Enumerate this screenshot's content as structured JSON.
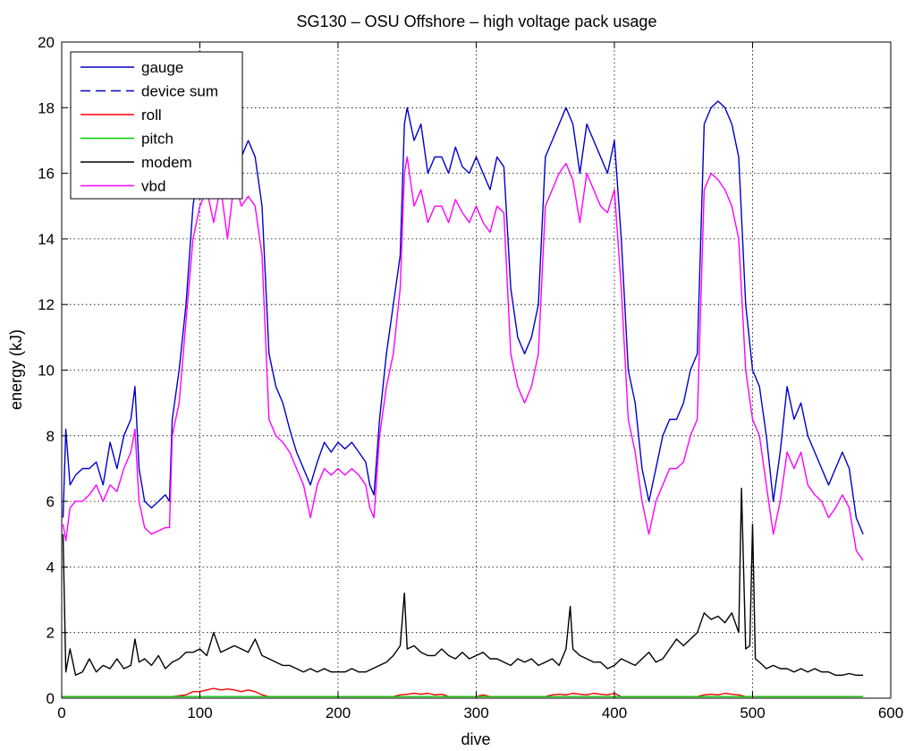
{
  "chart_data": {
    "type": "line",
    "title": "SG130 – OSU Offshore – high voltage pack usage",
    "xlabel": "dive",
    "ylabel": "energy (kJ)",
    "xlim": [
      0,
      600
    ],
    "ylim": [
      0,
      20
    ],
    "xticks": [
      0,
      100,
      200,
      300,
      400,
      500,
      600
    ],
    "yticks": [
      0,
      2,
      4,
      6,
      8,
      10,
      12,
      14,
      16,
      18,
      20
    ],
    "grid": true,
    "legend_position": "top-left",
    "series": [
      {
        "name": "gauge",
        "color": "#0000cc",
        "dash": "solid",
        "x": [
          1,
          3,
          6,
          10,
          15,
          20,
          25,
          30,
          35,
          40,
          45,
          50,
          53,
          56,
          60,
          65,
          70,
          75,
          78,
          80,
          85,
          90,
          95,
          100,
          105,
          110,
          115,
          120,
          125,
          130,
          135,
          140,
          145,
          150,
          155,
          160,
          165,
          170,
          175,
          180,
          185,
          190,
          195,
          200,
          205,
          210,
          215,
          220,
          223,
          226,
          230,
          235,
          240,
          245,
          248,
          250,
          255,
          260,
          265,
          270,
          275,
          280,
          285,
          290,
          295,
          300,
          305,
          310,
          315,
          320,
          325,
          330,
          335,
          340,
          345,
          350,
          355,
          360,
          365,
          370,
          375,
          380,
          385,
          390,
          395,
          400,
          405,
          410,
          415,
          420,
          425,
          430,
          435,
          440,
          445,
          450,
          455,
          460,
          465,
          470,
          475,
          480,
          485,
          490,
          495,
          500,
          505,
          510,
          515,
          520,
          525,
          530,
          535,
          540,
          545,
          550,
          555,
          560,
          565,
          570,
          575,
          580
        ],
        "y": [
          5.5,
          8.2,
          6.5,
          6.8,
          7.0,
          7.0,
          7.2,
          6.5,
          7.8,
          7.0,
          8.0,
          8.5,
          9.5,
          7.0,
          6.0,
          5.8,
          6.0,
          6.2,
          6.0,
          8.5,
          10.0,
          12.0,
          15.0,
          16.5,
          17.0,
          16.0,
          17.2,
          15.5,
          17.5,
          16.5,
          17.0,
          16.5,
          15.0,
          10.5,
          9.5,
          9.0,
          8.2,
          7.5,
          7.0,
          6.5,
          7.2,
          7.8,
          7.5,
          7.8,
          7.6,
          7.8,
          7.5,
          7.2,
          6.5,
          6.2,
          8.5,
          10.5,
          12.0,
          13.5,
          17.5,
          18.0,
          17.0,
          17.5,
          16.0,
          16.5,
          16.5,
          16.0,
          16.8,
          16.2,
          16.0,
          16.5,
          16.0,
          15.5,
          16.5,
          16.2,
          12.5,
          11.0,
          10.5,
          11.0,
          12.0,
          16.5,
          17.0,
          17.5,
          18.0,
          17.5,
          16.0,
          17.5,
          17.0,
          16.5,
          16.0,
          17.0,
          14.0,
          10.0,
          9.0,
          7.0,
          6.0,
          7.0,
          8.0,
          8.5,
          8.5,
          9.0,
          10.0,
          10.5,
          17.5,
          18.0,
          18.2,
          18.0,
          17.5,
          16.5,
          12.0,
          10.0,
          9.5,
          8.0,
          6.0,
          7.5,
          9.5,
          8.5,
          9.0,
          8.0,
          7.5,
          7.0,
          6.5,
          7.0,
          7.5,
          7.0,
          5.5,
          5.0
        ]
      },
      {
        "name": "device sum",
        "color": "#0000cc",
        "dash": "dashed",
        "x": [
          1,
          3,
          6,
          10,
          15,
          20,
          25,
          30,
          35,
          40,
          45,
          50,
          53,
          56,
          60,
          65,
          70,
          75,
          78,
          80,
          85,
          90,
          95,
          100,
          105,
          110,
          115,
          120,
          125,
          130,
          135,
          140,
          145,
          150,
          155,
          160,
          165,
          170,
          175,
          180,
          185,
          190,
          195,
          200,
          205,
          210,
          215,
          220,
          223,
          226,
          230,
          235,
          240,
          245,
          248,
          250,
          255,
          260,
          265,
          270,
          275,
          280,
          285,
          290,
          295,
          300,
          305,
          310,
          315,
          320,
          325,
          330,
          335,
          340,
          345,
          350,
          355,
          360,
          365,
          370,
          375,
          380,
          385,
          390,
          395,
          400,
          405,
          410,
          415,
          420,
          425,
          430,
          435,
          440,
          445,
          450,
          455,
          460,
          465,
          470,
          475,
          480,
          485,
          490,
          495,
          500,
          505,
          510,
          515,
          520,
          525,
          530,
          535,
          540,
          545,
          550,
          555,
          560,
          565,
          570,
          575,
          580
        ],
        "y": [
          5.5,
          8.2,
          6.5,
          6.8,
          7.0,
          7.0,
          7.2,
          6.5,
          7.8,
          7.0,
          8.0,
          8.5,
          9.5,
          7.0,
          6.0,
          5.8,
          6.0,
          6.2,
          6.0,
          8.5,
          10.0,
          12.0,
          15.0,
          16.5,
          17.0,
          16.0,
          17.2,
          15.5,
          17.5,
          16.5,
          17.0,
          16.5,
          15.0,
          10.5,
          9.5,
          9.0,
          8.2,
          7.5,
          7.0,
          6.5,
          7.2,
          7.8,
          7.5,
          7.8,
          7.6,
          7.8,
          7.5,
          7.2,
          6.5,
          6.2,
          8.5,
          10.5,
          12.0,
          13.5,
          17.5,
          18.0,
          17.0,
          17.5,
          16.0,
          16.5,
          16.5,
          16.0,
          16.8,
          16.2,
          16.0,
          16.5,
          16.0,
          15.5,
          16.5,
          16.2,
          12.5,
          11.0,
          10.5,
          11.0,
          12.0,
          16.5,
          17.0,
          17.5,
          18.0,
          17.5,
          16.0,
          17.5,
          17.0,
          16.5,
          16.0,
          17.0,
          14.0,
          10.0,
          9.0,
          7.0,
          6.0,
          7.0,
          8.0,
          8.5,
          8.5,
          9.0,
          10.0,
          10.5,
          17.5,
          18.0,
          18.2,
          18.0,
          17.5,
          16.5,
          12.0,
          10.0,
          9.5,
          8.0,
          6.0,
          7.5,
          9.5,
          8.5,
          9.0,
          8.0,
          7.5,
          7.0,
          6.5,
          7.0,
          7.5,
          7.0,
          5.5,
          5.0
        ]
      },
      {
        "name": "roll",
        "color": "#ff0000",
        "dash": "solid",
        "x": [
          0,
          80,
          90,
          95,
          100,
          105,
          110,
          115,
          120,
          125,
          130,
          135,
          140,
          145,
          150,
          240,
          245,
          250,
          255,
          260,
          265,
          270,
          275,
          280,
          290,
          300,
          305,
          310,
          350,
          355,
          360,
          365,
          370,
          375,
          380,
          385,
          390,
          395,
          400,
          405,
          460,
          465,
          470,
          475,
          480,
          485,
          490,
          495,
          500,
          580
        ],
        "y": [
          0.05,
          0.05,
          0.1,
          0.2,
          0.2,
          0.25,
          0.3,
          0.25,
          0.28,
          0.25,
          0.2,
          0.25,
          0.2,
          0.1,
          0.05,
          0.05,
          0.1,
          0.12,
          0.15,
          0.12,
          0.15,
          0.1,
          0.12,
          0.05,
          0.05,
          0.05,
          0.1,
          0.05,
          0.05,
          0.1,
          0.12,
          0.1,
          0.15,
          0.12,
          0.1,
          0.15,
          0.12,
          0.1,
          0.15,
          0.05,
          0.05,
          0.1,
          0.12,
          0.1,
          0.15,
          0.12,
          0.1,
          0.05,
          0.05,
          0.05
        ]
      },
      {
        "name": "pitch",
        "color": "#00cc00",
        "dash": "solid",
        "x": [
          0,
          100,
          200,
          300,
          400,
          500,
          580
        ],
        "y": [
          0.05,
          0.05,
          0.05,
          0.05,
          0.05,
          0.05,
          0.05
        ]
      },
      {
        "name": "modem",
        "color": "#000000",
        "dash": "solid",
        "x": [
          1,
          3,
          6,
          10,
          15,
          20,
          25,
          30,
          35,
          40,
          45,
          50,
          53,
          56,
          60,
          65,
          70,
          75,
          80,
          85,
          90,
          95,
          100,
          105,
          110,
          115,
          120,
          125,
          130,
          135,
          140,
          145,
          150,
          155,
          160,
          165,
          170,
          175,
          180,
          185,
          190,
          195,
          200,
          205,
          210,
          215,
          220,
          225,
          230,
          235,
          240,
          245,
          248,
          250,
          255,
          260,
          265,
          270,
          275,
          280,
          285,
          290,
          295,
          300,
          305,
          310,
          315,
          320,
          325,
          330,
          335,
          340,
          345,
          350,
          355,
          360,
          365,
          368,
          370,
          375,
          380,
          385,
          390,
          395,
          400,
          405,
          410,
          415,
          420,
          425,
          430,
          435,
          440,
          445,
          450,
          455,
          460,
          465,
          470,
          475,
          480,
          485,
          490,
          492,
          495,
          498,
          500,
          502,
          505,
          510,
          515,
          520,
          525,
          530,
          535,
          540,
          545,
          550,
          555,
          560,
          565,
          570,
          575,
          580
        ],
        "y": [
          5.0,
          0.8,
          1.5,
          0.7,
          0.8,
          1.2,
          0.8,
          1.0,
          0.9,
          1.2,
          0.9,
          1.0,
          1.8,
          1.1,
          1.2,
          1.0,
          1.3,
          0.9,
          1.1,
          1.2,
          1.4,
          1.4,
          1.5,
          1.3,
          2.0,
          1.4,
          1.5,
          1.6,
          1.5,
          1.4,
          1.8,
          1.3,
          1.2,
          1.1,
          1.0,
          1.0,
          0.9,
          0.8,
          0.9,
          0.8,
          0.9,
          0.8,
          0.8,
          0.8,
          0.9,
          0.8,
          0.8,
          0.9,
          1.0,
          1.1,
          1.3,
          1.6,
          3.2,
          1.5,
          1.6,
          1.4,
          1.3,
          1.3,
          1.5,
          1.3,
          1.2,
          1.4,
          1.2,
          1.3,
          1.4,
          1.2,
          1.2,
          1.1,
          1.0,
          1.2,
          1.1,
          1.2,
          1.0,
          1.1,
          1.2,
          1.0,
          1.5,
          2.8,
          1.5,
          1.3,
          1.2,
          1.1,
          1.1,
          0.9,
          1.0,
          1.2,
          1.1,
          1.0,
          1.2,
          1.4,
          1.1,
          1.2,
          1.5,
          1.8,
          1.6,
          1.8,
          2.0,
          2.6,
          2.4,
          2.5,
          2.3,
          2.6,
          2.0,
          6.4,
          1.5,
          1.6,
          5.3,
          1.2,
          1.1,
          0.9,
          1.0,
          0.9,
          0.9,
          0.8,
          0.9,
          0.8,
          0.9,
          0.8,
          0.8,
          0.7,
          0.7,
          0.75,
          0.7,
          0.7
        ]
      },
      {
        "name": "vbd",
        "color": "#ff00ff",
        "dash": "solid",
        "x": [
          1,
          3,
          6,
          10,
          15,
          20,
          25,
          30,
          35,
          40,
          45,
          50,
          53,
          56,
          60,
          65,
          70,
          75,
          78,
          80,
          85,
          90,
          95,
          100,
          105,
          110,
          115,
          120,
          125,
          130,
          135,
          140,
          145,
          150,
          155,
          160,
          165,
          170,
          175,
          180,
          185,
          190,
          195,
          200,
          205,
          210,
          215,
          220,
          223,
          226,
          230,
          235,
          240,
          245,
          248,
          250,
          255,
          260,
          265,
          270,
          275,
          280,
          285,
          290,
          295,
          300,
          305,
          310,
          315,
          320,
          325,
          330,
          335,
          340,
          345,
          350,
          355,
          360,
          365,
          370,
          375,
          380,
          385,
          390,
          395,
          400,
          405,
          410,
          415,
          420,
          425,
          430,
          435,
          440,
          445,
          450,
          455,
          460,
          465,
          470,
          475,
          480,
          485,
          490,
          495,
          500,
          505,
          510,
          515,
          520,
          525,
          530,
          535,
          540,
          545,
          550,
          555,
          560,
          565,
          570,
          575,
          580
        ],
        "y": [
          5.3,
          4.8,
          5.8,
          6.0,
          6.0,
          6.2,
          6.5,
          6.0,
          6.5,
          6.3,
          7.0,
          7.5,
          8.2,
          6.0,
          5.2,
          5.0,
          5.1,
          5.2,
          5.2,
          8.0,
          9.0,
          11.5,
          14.0,
          15.0,
          15.5,
          14.5,
          15.6,
          14.0,
          15.8,
          15.0,
          15.3,
          15.0,
          13.5,
          8.5,
          8.0,
          7.8,
          7.5,
          7.0,
          6.5,
          5.5,
          6.5,
          7.0,
          6.8,
          7.0,
          6.8,
          7.0,
          6.8,
          6.5,
          5.8,
          5.5,
          8.0,
          9.5,
          10.5,
          12.5,
          16.0,
          16.5,
          15.0,
          15.5,
          14.5,
          15.0,
          15.0,
          14.5,
          15.2,
          14.8,
          14.5,
          15.0,
          14.5,
          14.2,
          15.0,
          14.8,
          10.5,
          9.5,
          9.0,
          9.5,
          10.5,
          15.0,
          15.5,
          16.0,
          16.3,
          15.8,
          14.5,
          16.0,
          15.5,
          15.0,
          14.8,
          15.5,
          12.5,
          8.5,
          7.5,
          6.0,
          5.0,
          6.0,
          6.5,
          7.0,
          7.0,
          7.2,
          8.0,
          8.5,
          15.5,
          16.0,
          15.8,
          15.5,
          15.0,
          14.0,
          10.0,
          8.5,
          8.0,
          6.5,
          5.0,
          6.0,
          7.5,
          7.0,
          7.5,
          6.5,
          6.2,
          6.0,
          5.5,
          5.8,
          6.2,
          5.8,
          4.5,
          4.2
        ]
      }
    ]
  }
}
